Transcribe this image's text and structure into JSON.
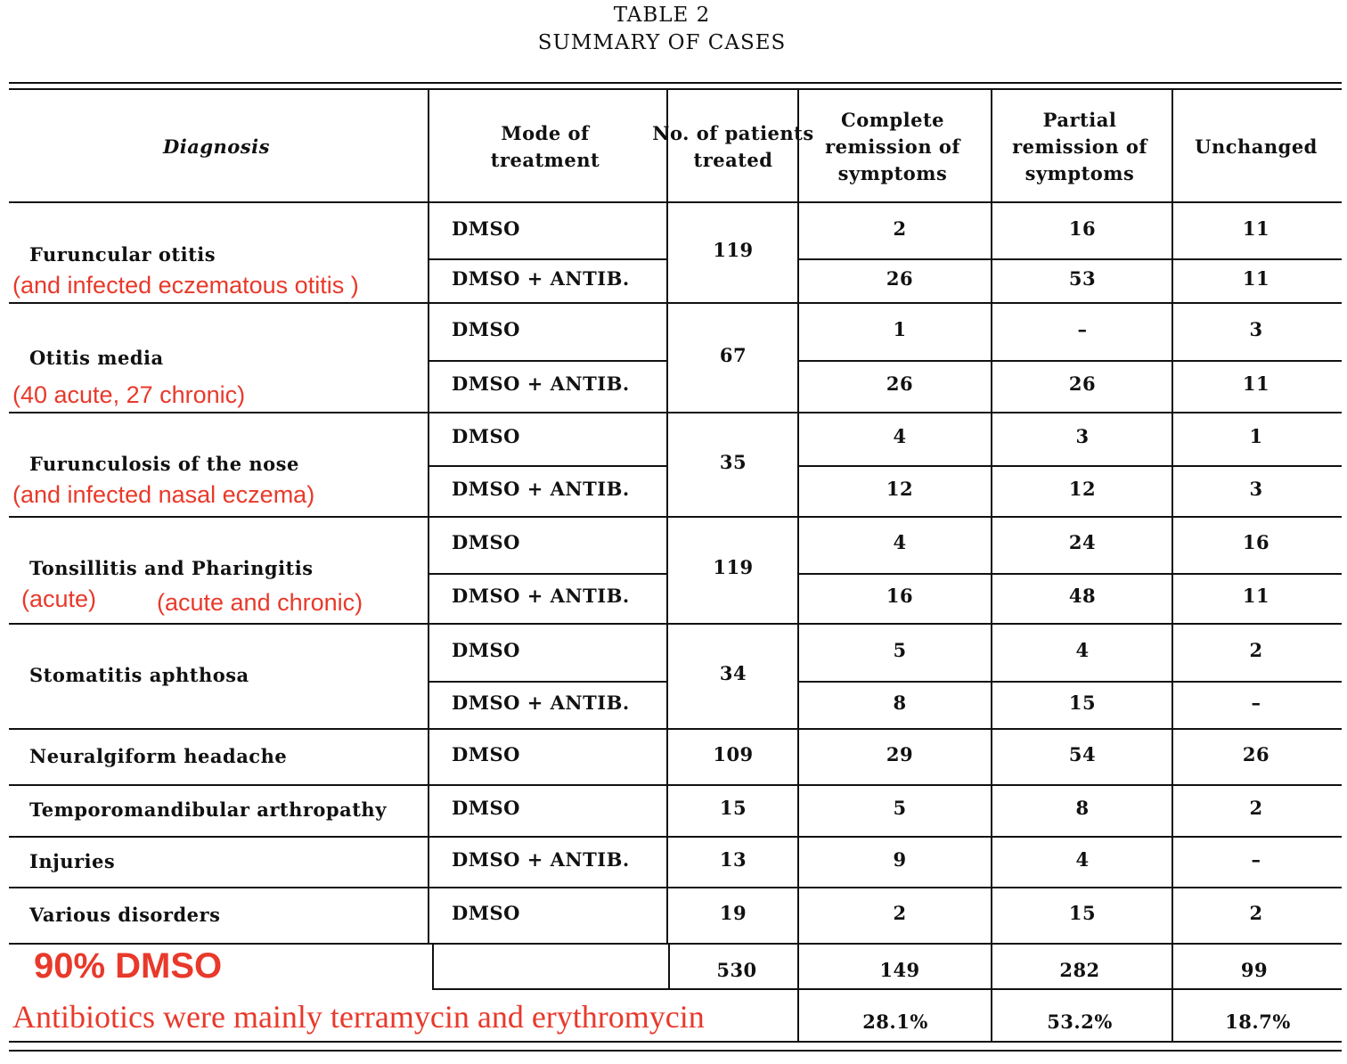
{
  "title": {
    "line1": "TABLE 2",
    "line2": "SUMMARY OF CASES"
  },
  "headers": [
    "Diagnosis",
    "Mode of treatment",
    "No. of patients treated",
    "Complete remission of symptoms",
    "Partial remission of symptoms",
    "Unchanged"
  ],
  "groups": [
    {
      "diagnosis": "Furuncular otitis",
      "notes": [
        "(and infected eczematous otitis )"
      ],
      "patients": "119",
      "rows": [
        {
          "mode": "DMSO",
          "complete": "2",
          "partial": "16",
          "unchanged": "11"
        },
        {
          "mode": "DMSO + ANTIB.",
          "complete": "26",
          "partial": "53",
          "unchanged": "11"
        }
      ]
    },
    {
      "diagnosis": "Otitis media",
      "notes": [
        "(40 acute, 27 chronic)"
      ],
      "patients": "67",
      "rows": [
        {
          "mode": "DMSO",
          "complete": "1",
          "partial": "–",
          "unchanged": "3"
        },
        {
          "mode": "DMSO + ANTIB.",
          "complete": "26",
          "partial": "26",
          "unchanged": "11"
        }
      ]
    },
    {
      "diagnosis": "Furunculosis of the nose",
      "notes": [
        "(and infected nasal eczema)"
      ],
      "patients": "35",
      "rows": [
        {
          "mode": "DMSO",
          "complete": "4",
          "partial": "3",
          "unchanged": "1"
        },
        {
          "mode": "DMSO + ANTIB.",
          "complete": "12",
          "partial": "12",
          "unchanged": "3"
        }
      ]
    },
    {
      "diagnosis": "Tonsillitis and Pharingitis",
      "notes": [
        "(acute)",
        "(acute and chronic)"
      ],
      "patients": "119",
      "rows": [
        {
          "mode": "DMSO",
          "complete": "4",
          "partial": "24",
          "unchanged": "16"
        },
        {
          "mode": "DMSO + ANTIB.",
          "complete": "16",
          "partial": "48",
          "unchanged": "11"
        }
      ]
    },
    {
      "diagnosis": "Stomatitis aphthosa",
      "notes": [],
      "patients": "34",
      "rows": [
        {
          "mode": "DMSO",
          "complete": "5",
          "partial": "4",
          "unchanged": "2"
        },
        {
          "mode": "DMSO + ANTIB.",
          "complete": "8",
          "partial": "15",
          "unchanged": "–"
        }
      ]
    },
    {
      "diagnosis": "Neuralgiform headache",
      "notes": [],
      "patients": "109",
      "rows": [
        {
          "mode": "DMSO",
          "complete": "29",
          "partial": "54",
          "unchanged": "26"
        }
      ]
    },
    {
      "diagnosis": "Temporomandibular arthropathy",
      "notes": [],
      "patients": "15",
      "rows": [
        {
          "mode": "DMSO",
          "complete": "5",
          "partial": "8",
          "unchanged": "2"
        }
      ]
    },
    {
      "diagnosis": "Injuries",
      "notes": [],
      "patients": "13",
      "rows": [
        {
          "mode": "DMSO + ANTIB.",
          "complete": "9",
          "partial": "4",
          "unchanged": "–"
        }
      ]
    },
    {
      "diagnosis": "Various disorders",
      "notes": [],
      "patients": "19",
      "rows": [
        {
          "mode": "DMSO",
          "complete": "2",
          "partial": "15",
          "unchanged": "2"
        }
      ]
    }
  ],
  "totals": {
    "patients": "530",
    "complete": "149",
    "partial": "282",
    "unchanged": "99"
  },
  "percentages": {
    "complete": "28.1%",
    "partial": "53.2%",
    "unchanged": "18.7%"
  },
  "annotations": {
    "dmso": "90% DMSO",
    "antibiotics": "Antibiotics were mainly terramycin and erythromycin"
  },
  "colors": {
    "annotation": "#e8392b",
    "text": "#111111"
  }
}
